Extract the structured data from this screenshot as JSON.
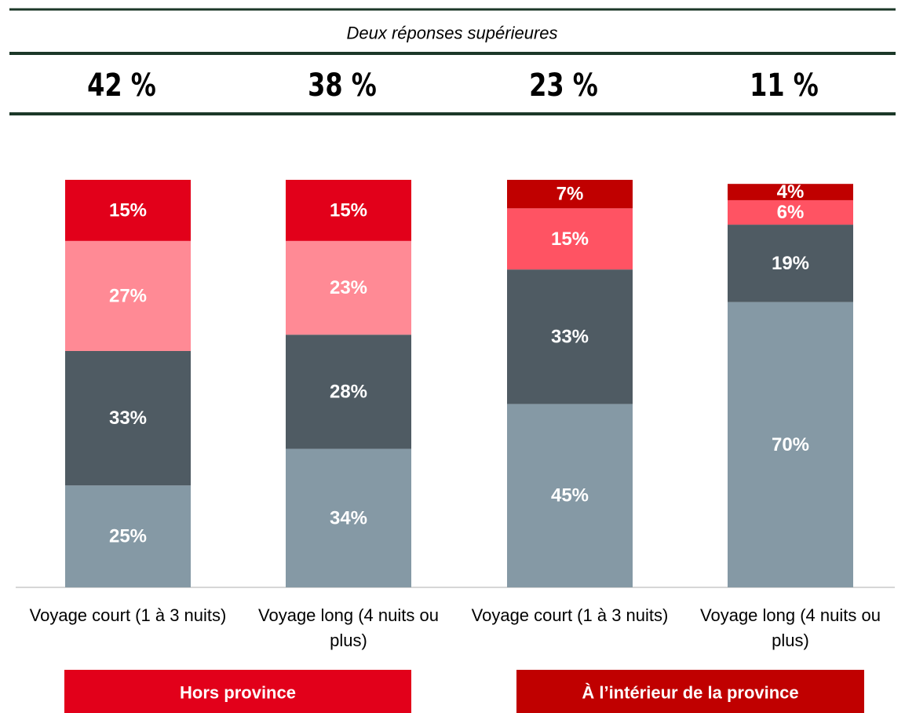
{
  "chart_data": {
    "type": "stacked_bar",
    "header": "Deux réponses supérieures",
    "top_two": {
      "values": [
        42,
        38,
        23,
        11
      ],
      "value_labels": [
        "42 %",
        "38 %",
        "23 %",
        "11 %"
      ]
    },
    "categories": [
      "Voyage court (1 à 3 nuits)",
      "Voyage long (4 nuits ou plus)",
      "Voyage court (1 à 3 nuits)",
      "Voyage long (4 nuits ou plus)"
    ],
    "series": [
      {
        "colors": [
          "#8599a5",
          "#8599a5",
          "#8599a5",
          "#8599a5"
        ],
        "values": [
          25,
          34,
          45,
          70
        ],
        "value_labels": [
          "25%",
          "34%",
          "45%",
          "70%"
        ]
      },
      {
        "colors": [
          "#4f5b63",
          "#4f5b63",
          "#4f5b63",
          "#4f5b63"
        ],
        "values": [
          33,
          28,
          33,
          19
        ],
        "value_labels": [
          "33%",
          "28%",
          "33%",
          "19%"
        ]
      },
      {
        "colors": [
          "#ff8a95",
          "#ff8a95",
          "#ff5363",
          "#ff5363"
        ],
        "values": [
          27,
          23,
          15,
          6
        ],
        "value_labels": [
          "27%",
          "23%",
          "15%",
          "6%"
        ]
      },
      {
        "colors": [
          "#e2001a",
          "#e2001a",
          "#c00000",
          "#c00000"
        ],
        "values": [
          15,
          15,
          7,
          4
        ],
        "value_labels": [
          "15%",
          "15%",
          "7%",
          "4%"
        ]
      }
    ],
    "ylim": [
      0,
      100
    ],
    "groups": [
      {
        "label": "Hors province",
        "color": "#e2001a"
      },
      {
        "label": "À l’intérieur de la province",
        "color": "#c00000"
      }
    ]
  }
}
